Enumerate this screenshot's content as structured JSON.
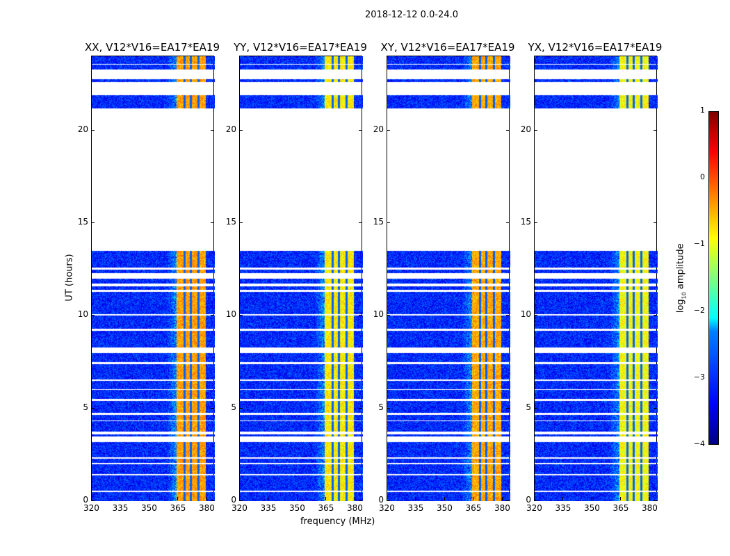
{
  "chart_data": {
    "type": "heatmap",
    "suptitle": "2018-12-12 0.0-24.0",
    "xlabel": "frequency (MHz)",
    "ylabel": "UT (hours)",
    "xlim": [
      320,
      384
    ],
    "ylim": [
      0,
      24
    ],
    "xticks": [
      "320",
      "335",
      "350",
      "365",
      "380"
    ],
    "xtick_values": [
      320,
      335,
      350,
      365,
      380
    ],
    "yticks": [
      "0",
      "5",
      "10",
      "15",
      "20"
    ],
    "ytick_values": [
      0,
      5,
      10,
      15,
      20
    ],
    "colorbar": {
      "label": "log10 amplitude",
      "label_main": "log",
      "label_sub": "10",
      "label_rest": " amplitude",
      "range": [
        -4,
        1
      ],
      "ticks": [
        "1",
        "0",
        "−1",
        "−2",
        "−3",
        "−4"
      ],
      "tick_values": [
        1,
        0,
        -1,
        -2,
        -3,
        -4
      ],
      "colormap": "jet"
    },
    "background_level": -3.2,
    "rfi_band_mhz": [
      364,
      379
    ],
    "rfi_subband_gaps_mhz": [
      368,
      371.5,
      375.5
    ],
    "time_segments_hours": [
      [
        0,
        0.5
      ],
      [
        0.55,
        1.4
      ],
      [
        1.45,
        2.0
      ],
      [
        2.05,
        2.3
      ],
      [
        2.35,
        3.2
      ],
      [
        3.5,
        3.6
      ],
      [
        3.75,
        4.3
      ],
      [
        4.35,
        4.65
      ],
      [
        4.75,
        5.4
      ],
      [
        5.5,
        6.0
      ],
      [
        6.05,
        6.5
      ],
      [
        6.55,
        7.4
      ],
      [
        7.5,
        8.0
      ],
      [
        8.3,
        9.2
      ],
      [
        9.3,
        10.0
      ],
      [
        10.1,
        11.3
      ],
      [
        11.4,
        11.6
      ],
      [
        11.75,
        12.0
      ],
      [
        12.3,
        12.5
      ],
      [
        12.6,
        13.5
      ],
      [
        21.2,
        21.9
      ],
      [
        22.6,
        22.75
      ],
      [
        23.3,
        23.55
      ],
      [
        23.6,
        24
      ]
    ],
    "panels": [
      {
        "title": "XX, V12*V16=EA17*EA19",
        "band_level": -0.4
      },
      {
        "title": "YY, V12*V16=EA17*EA19",
        "band_level": -0.8
      },
      {
        "title": "XY, V12*V16=EA17*EA19",
        "band_level": -0.45
      },
      {
        "title": "YX, V12*V16=EA17*EA19",
        "band_level": -0.9
      }
    ]
  }
}
